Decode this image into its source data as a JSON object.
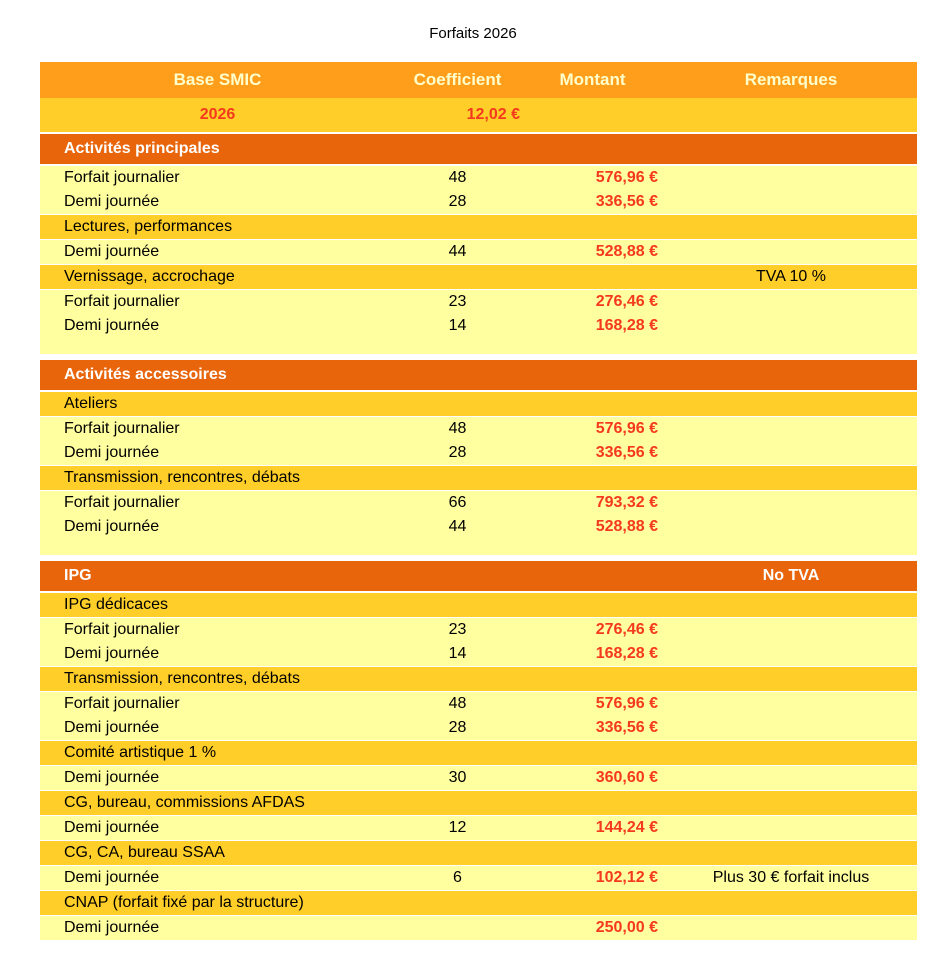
{
  "title": "Forfaits 2026",
  "colors": {
    "orange": "#FF9E1A",
    "gold": "#FFCE28",
    "dark_orange": "#E8650C",
    "light_yellow": "#FFFFA0",
    "red": "#F5391E",
    "header_text": "#FFFFCC"
  },
  "columns": [
    "Base SMIC",
    "Coefficient",
    "Montant",
    "Remarques"
  ],
  "smic_row": {
    "year": "2026",
    "value": "12,02 €"
  },
  "sections": [
    {
      "title": "Activités principales",
      "remark": "",
      "rows": [
        {
          "type": "data",
          "label": "Forfait journalier",
          "coef": "48",
          "amount": "576,96 €",
          "remark": ""
        },
        {
          "type": "data",
          "label": "Demi journée",
          "coef": "28",
          "amount": "336,56 €",
          "remark": ""
        },
        {
          "type": "sub",
          "label": "Lectures, performances",
          "remark": ""
        },
        {
          "type": "data",
          "label": "Demi journée",
          "coef": "44",
          "amount": "528,88 €",
          "remark": ""
        },
        {
          "type": "sub",
          "label": "Vernissage, accrochage",
          "remark": "TVA 10 %"
        },
        {
          "type": "data",
          "label": "Forfait journalier",
          "coef": "23",
          "amount": "276,46 €",
          "remark": ""
        },
        {
          "type": "data",
          "label": "Demi journée",
          "coef": "14",
          "amount": "168,28 €",
          "remark": ""
        },
        {
          "type": "spacer"
        }
      ]
    },
    {
      "title": "Activités accessoires",
      "remark": "",
      "rows": [
        {
          "type": "sub",
          "label": "Ateliers",
          "remark": ""
        },
        {
          "type": "data",
          "label": "Forfait journalier",
          "coef": "48",
          "amount": "576,96 €",
          "remark": ""
        },
        {
          "type": "data",
          "label": "Demi journée",
          "coef": "28",
          "amount": "336,56 €",
          "remark": ""
        },
        {
          "type": "sub",
          "label": "Transmission, rencontres, débats",
          "remark": ""
        },
        {
          "type": "data",
          "label": "Forfait journalier",
          "coef": "66",
          "amount": "793,32 €",
          "remark": ""
        },
        {
          "type": "data",
          "label": "Demi journée",
          "coef": "44",
          "amount": "528,88 €",
          "remark": ""
        },
        {
          "type": "spacer"
        }
      ]
    },
    {
      "title": "IPG",
      "remark": "No TVA",
      "rows": [
        {
          "type": "sub",
          "label": "IPG dédicaces",
          "remark": ""
        },
        {
          "type": "data",
          "label": "Forfait journalier",
          "coef": "23",
          "amount": "276,46 €",
          "remark": ""
        },
        {
          "type": "data",
          "label": "Demi journée",
          "coef": "14",
          "amount": "168,28 €",
          "remark": ""
        },
        {
          "type": "sub",
          "label": "Transmission, rencontres, débats",
          "remark": ""
        },
        {
          "type": "data",
          "label": "Forfait journalier",
          "coef": "48",
          "amount": "576,96 €",
          "remark": ""
        },
        {
          "type": "data",
          "label": "Demi journée",
          "coef": "28",
          "amount": "336,56 €",
          "remark": ""
        },
        {
          "type": "sub",
          "label": "Comité artistique 1 %",
          "remark": ""
        },
        {
          "type": "data",
          "label": "Demi journée",
          "coef": "30",
          "amount": "360,60 €",
          "remark": ""
        },
        {
          "type": "sub",
          "label": "CG, bureau, commissions AFDAS",
          "remark": ""
        },
        {
          "type": "data",
          "label": "Demi journée",
          "coef": "12",
          "amount": "144,24 €",
          "remark": ""
        },
        {
          "type": "sub",
          "label": "CG, CA, bureau SSAA",
          "remark": ""
        },
        {
          "type": "data",
          "label": "Demi journée",
          "coef": "6",
          "amount": "102,12 €",
          "remark": "Plus 30 € forfait inclus"
        },
        {
          "type": "sub",
          "label": "CNAP (forfait fixé par la structure)",
          "remark": ""
        },
        {
          "type": "data",
          "label": "Demi journée",
          "coef": "",
          "amount": "250,00 €",
          "remark": ""
        }
      ]
    }
  ]
}
